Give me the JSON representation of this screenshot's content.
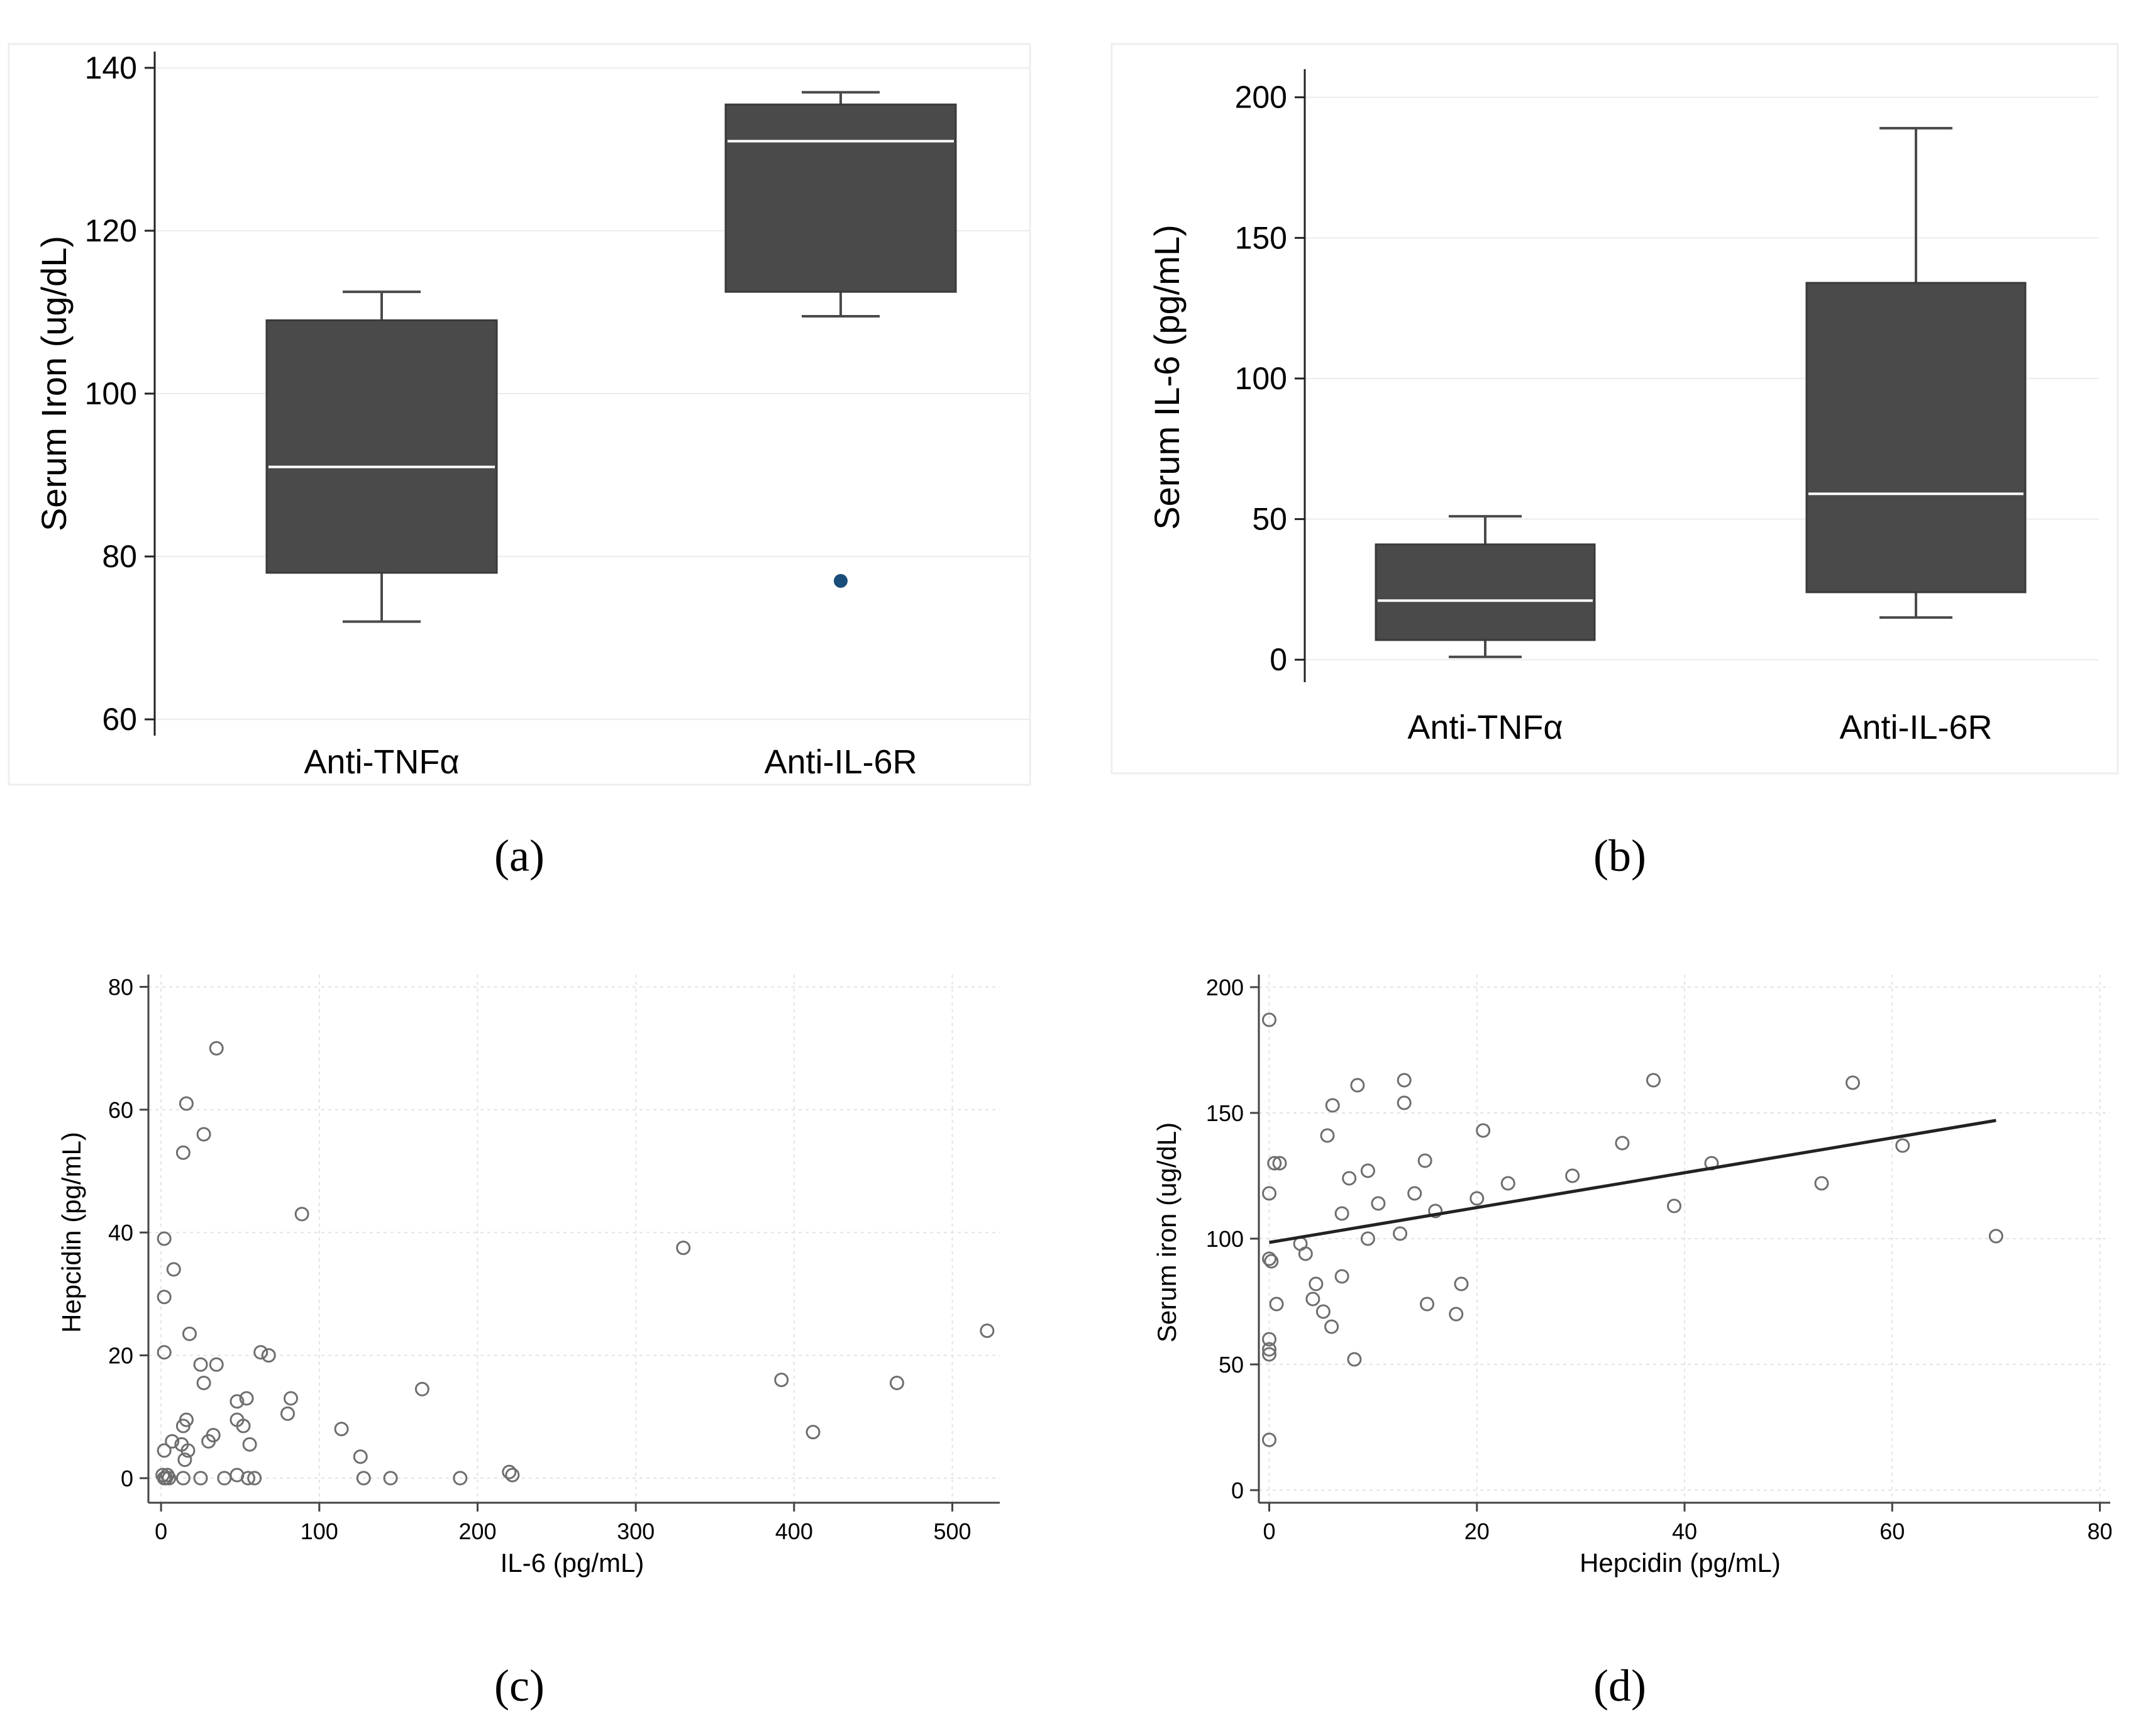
{
  "chart_data": [
    {
      "type": "box",
      "caption": "(a)",
      "title": "",
      "xlabel": "",
      "ylabel": "Serum Iron (ug/dL)",
      "ylim": [
        58,
        142
      ],
      "yticks": [
        60,
        80,
        100,
        120,
        140
      ],
      "grid": true,
      "categories": [
        "Anti-TNFα",
        "Anti-IL-6R"
      ],
      "boxes": [
        {
          "category": "Anti-TNFα",
          "whisker_low": 72,
          "q1": 78,
          "median": 91,
          "q3": 109,
          "whisker_high": 112.5,
          "outliers": []
        },
        {
          "category": "Anti-IL-6R",
          "whisker_low": 109.5,
          "q1": 112.5,
          "median": 131,
          "q3": 135.5,
          "whisker_high": 137,
          "outliers": [
            77
          ]
        }
      ],
      "colors": {
        "box": "#4a4a4a",
        "median": "#ffffff",
        "outlier": "#1a4e7a"
      }
    },
    {
      "type": "box",
      "caption": "(b)",
      "title": "",
      "xlabel": "",
      "ylabel": "Serum IL-6 (pg/mL)",
      "ylim": [
        -8,
        210
      ],
      "yticks": [
        0,
        50,
        100,
        150,
        200
      ],
      "grid": true,
      "categories": [
        "Anti-TNFα",
        "Anti-IL-6R"
      ],
      "boxes": [
        {
          "category": "Anti-TNFα",
          "whisker_low": 1,
          "q1": 7,
          "median": 21,
          "q3": 41,
          "whisker_high": 51,
          "outliers": []
        },
        {
          "category": "Anti-IL-6R",
          "whisker_low": 15,
          "q1": 24,
          "median": 59,
          "q3": 134,
          "whisker_high": 189,
          "outliers": []
        }
      ],
      "colors": {
        "box": "#4a4a4a",
        "median": "#ffffff"
      }
    },
    {
      "type": "scatter",
      "caption": "(c)",
      "title": "",
      "xlabel": "IL-6 (pg/mL)",
      "ylabel": "Hepcidin (pg/mL)",
      "xlim": [
        -8,
        530
      ],
      "ylim": [
        -4,
        82
      ],
      "xticks": [
        0,
        100,
        200,
        300,
        400,
        500
      ],
      "yticks": [
        0,
        20,
        40,
        60,
        80
      ],
      "grid": true,
      "points": [
        [
          1,
          0.5
        ],
        [
          2,
          0
        ],
        [
          3,
          0
        ],
        [
          4,
          0.5
        ],
        [
          2,
          4.5
        ],
        [
          7,
          6
        ],
        [
          5,
          0
        ],
        [
          2,
          29.5
        ],
        [
          2,
          20.5
        ],
        [
          2,
          39
        ],
        [
          8,
          34
        ],
        [
          14,
          53
        ],
        [
          16,
          61
        ],
        [
          27,
          56
        ],
        [
          35,
          70
        ],
        [
          18,
          23.5
        ],
        [
          25,
          18.5
        ],
        [
          35,
          18.5
        ],
        [
          27,
          15.5
        ],
        [
          14,
          8.5
        ],
        [
          16,
          9.5
        ],
        [
          17,
          4.5
        ],
        [
          13,
          5.5
        ],
        [
          15,
          3
        ],
        [
          14,
          0
        ],
        [
          25,
          0
        ],
        [
          30,
          6
        ],
        [
          33,
          7
        ],
        [
          40,
          0
        ],
        [
          48,
          9.5
        ],
        [
          48,
          12.5
        ],
        [
          52,
          8.5
        ],
        [
          54,
          13
        ],
        [
          56,
          5.5
        ],
        [
          48,
          0.5
        ],
        [
          55,
          0
        ],
        [
          59,
          0
        ],
        [
          63,
          20.5
        ],
        [
          68,
          20
        ],
        [
          80,
          10.5
        ],
        [
          82,
          13
        ],
        [
          89,
          43
        ],
        [
          114,
          8
        ],
        [
          126,
          3.5
        ],
        [
          128,
          0
        ],
        [
          145,
          0
        ],
        [
          165,
          14.5
        ],
        [
          189,
          0
        ],
        [
          220,
          1
        ],
        [
          222,
          0.5
        ],
        [
          330,
          37.5
        ],
        [
          392,
          16
        ],
        [
          412,
          7.5
        ],
        [
          465,
          15.5
        ],
        [
          522,
          24
        ]
      ],
      "colors": {
        "marker": "#6e6e6e"
      }
    },
    {
      "type": "scatter",
      "caption": "(d)",
      "title": "",
      "xlabel": "Hepcidin (pg/mL)",
      "ylabel": "Serum iron (ug/dL)",
      "xlim": [
        -1,
        81
      ],
      "ylim": [
        -5,
        205
      ],
      "xticks": [
        0,
        20,
        40,
        60,
        80
      ],
      "yticks": [
        0,
        50,
        100,
        150,
        200
      ],
      "grid": true,
      "points": [
        [
          0,
          187
        ],
        [
          0,
          118
        ],
        [
          0,
          92
        ],
        [
          0.2,
          91
        ],
        [
          0,
          60
        ],
        [
          0,
          56
        ],
        [
          0,
          54
        ],
        [
          0,
          20
        ],
        [
          0.5,
          130
        ],
        [
          1,
          130
        ],
        [
          0.7,
          74
        ],
        [
          3,
          98
        ],
        [
          3.5,
          94
        ],
        [
          4.2,
          76
        ],
        [
          4.5,
          82
        ],
        [
          5.2,
          71
        ],
        [
          6,
          65
        ],
        [
          5.6,
          141
        ],
        [
          6.1,
          153
        ],
        [
          7,
          110
        ],
        [
          7,
          85
        ],
        [
          7.7,
          124
        ],
        [
          8.5,
          161
        ],
        [
          8.2,
          52
        ],
        [
          9.5,
          127
        ],
        [
          9.5,
          100
        ],
        [
          10.5,
          114
        ],
        [
          12.6,
          102
        ],
        [
          13,
          163
        ],
        [
          13,
          154
        ],
        [
          14,
          118
        ],
        [
          15,
          131
        ],
        [
          15.2,
          74
        ],
        [
          16,
          111
        ],
        [
          18,
          70
        ],
        [
          18.5,
          82
        ],
        [
          20,
          116
        ],
        [
          20.6,
          143
        ],
        [
          23,
          122
        ],
        [
          29.2,
          125
        ],
        [
          34,
          138
        ],
        [
          37,
          163
        ],
        [
          39,
          113
        ],
        [
          42.6,
          130
        ],
        [
          53.2,
          122
        ],
        [
          56.2,
          162
        ],
        [
          61,
          137
        ],
        [
          70,
          101
        ]
      ],
      "fit_line": {
        "x": [
          0,
          70
        ],
        "y": [
          98.5,
          147
        ]
      },
      "colors": {
        "marker": "#6e6e6e",
        "line": "#222222"
      }
    }
  ]
}
